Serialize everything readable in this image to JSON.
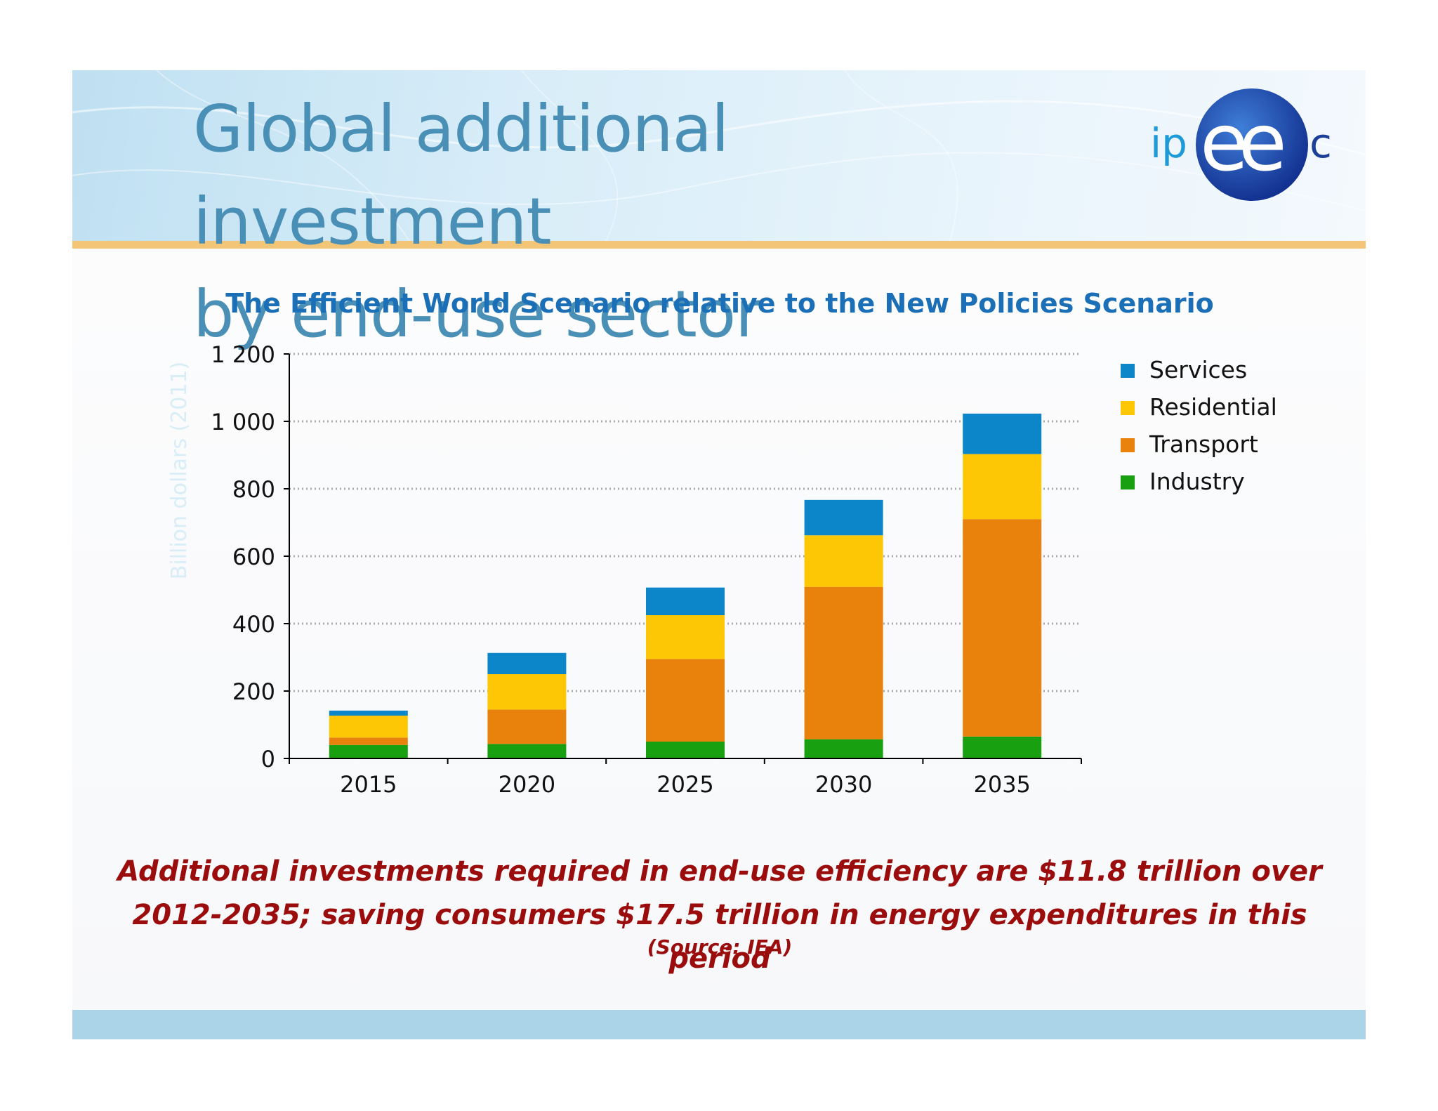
{
  "slide": {
    "title_line1": "Global additional investment",
    "title_line2": "by end-use sector",
    "logo_text_left": "ip",
    "logo_text_mid": "ee",
    "logo_text_right": "c",
    "caption_line1": "Additional investments required in end-use efficiency are $11.8 trillion over",
    "caption_line2": "2012-2035; saving consumers $17.5 trillion in energy expenditures in this period",
    "source": "(Source: IEA)"
  },
  "colors": {
    "title": "#4a8fb6",
    "chart_title": "#1b6fb6",
    "caption": "#9b0d0d",
    "header_rule": "#f3c677",
    "footer_band": "#acd4e9"
  },
  "chart_data": {
    "type": "bar",
    "stacked": true,
    "title": "The Efficient World Scenario relative to the New Policies Scenario",
    "xlabel": "",
    "ylabel": "Billion dollars (2011)",
    "ylim": [
      0,
      1200
    ],
    "yticks": [
      0,
      200,
      400,
      600,
      800,
      1000,
      1200
    ],
    "ytick_labels": [
      "0",
      "200",
      "400",
      "600",
      "800",
      "1 000",
      "1 200"
    ],
    "grid": true,
    "legend_position": "right",
    "categories": [
      "2015",
      "2020",
      "2025",
      "2030",
      "2035"
    ],
    "series": [
      {
        "name": "Industry",
        "color": "#18a010",
        "values": [
          40,
          43,
          50,
          57,
          65
        ]
      },
      {
        "name": "Transport",
        "color": "#e8820c",
        "values": [
          22,
          102,
          245,
          452,
          645
        ]
      },
      {
        "name": "Residential",
        "color": "#fdc705",
        "values": [
          65,
          105,
          130,
          153,
          193
        ]
      },
      {
        "name": "Services",
        "color": "#0d86c9",
        "values": [
          15,
          63,
          82,
          105,
          120
        ]
      }
    ]
  }
}
